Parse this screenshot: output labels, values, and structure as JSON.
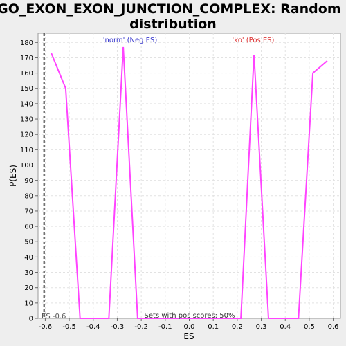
{
  "chart_data": {
    "type": "line",
    "title_line1": "GO_EXON_EXON_JUNCTION_COMPLEX: Random ES",
    "title_line2": "distribution",
    "xlabel": "ES",
    "ylabel": "P(ES)",
    "xlim": [
      -0.63,
      0.63
    ],
    "ylim": [
      0,
      186
    ],
    "xticks": [
      -0.6,
      -0.5,
      -0.4,
      -0.3,
      -0.2,
      -0.1,
      0.0,
      0.1,
      0.2,
      0.3,
      0.4,
      0.5,
      0.6
    ],
    "xtick_labels": [
      "-0.6",
      "-0.5",
      "-0.4",
      "-0.3",
      "-0.2",
      "-0.1",
      "0.0",
      "0.1",
      "0.2",
      "0.3",
      "0.4",
      "0.5",
      "0.6"
    ],
    "yticks": [
      0,
      10,
      20,
      30,
      40,
      50,
      60,
      70,
      80,
      90,
      100,
      110,
      120,
      130,
      140,
      150,
      160,
      170,
      180
    ],
    "grid": true,
    "series": [
      {
        "color": "#ff44ff",
        "x": [
          -0.575,
          -0.515,
          -0.455,
          -0.335,
          -0.275,
          -0.215,
          0.215,
          0.27,
          0.33,
          0.455,
          0.515,
          0.575
        ],
        "y": [
          173,
          150,
          0,
          0,
          177,
          0,
          0,
          172,
          0,
          0,
          160,
          168
        ]
      }
    ],
    "observed_es": -0.605,
    "observed_es_label": "ES -0.6",
    "neg_label": "'norm' (Neg ES)",
    "neg_label_color": "#3333cc",
    "pos_label": "'ko' (Pos ES)",
    "pos_label_color": "#dd3333",
    "footer": "Sets with pos scores: 50%"
  }
}
